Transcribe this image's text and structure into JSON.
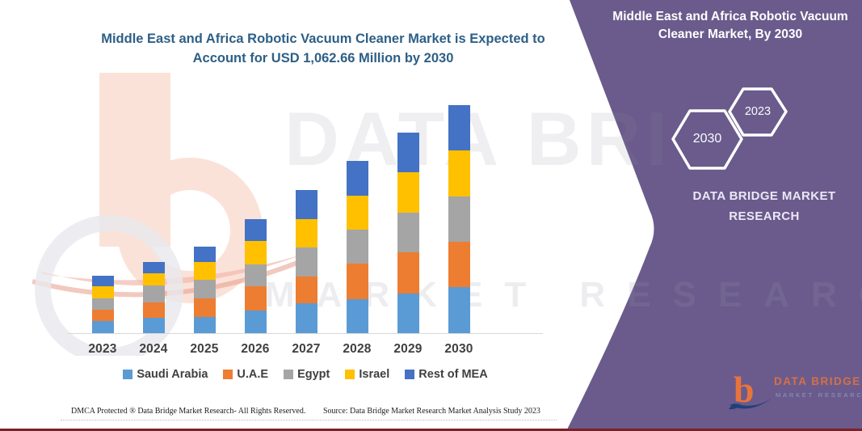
{
  "colors": {
    "panel_purple": "#6a5b8c",
    "bottom_line_maroon": "#7a2225",
    "title_blue": "#2d5f86",
    "axis_text": "#404040",
    "axis_line": "#d9d9d9",
    "logo_orange": "#e8743c",
    "logo_navy": "#223f7a"
  },
  "chart_data": {
    "type": "bar",
    "stacked": true,
    "title": "Middle East and Africa Robotic Vacuum Cleaner Market is Expected to Account for USD 1,062.66 Million by 2030",
    "unit": "USD Million",
    "categories": [
      "2023",
      "2024",
      "2025",
      "2026",
      "2027",
      "2028",
      "2029",
      "2030"
    ],
    "series": [
      {
        "name": "Saudi Arabia",
        "color": "#5B9BD5",
        "values": [
          57,
          73,
          77,
          104,
          139,
          157,
          185,
          215
        ]
      },
      {
        "name": "U.A.E",
        "color": "#ED7D31",
        "values": [
          54,
          72,
          84,
          113,
          126,
          167,
          193,
          212
        ]
      },
      {
        "name": "Egypt",
        "color": "#A5A5A5",
        "values": [
          50,
          79,
          88,
          103,
          134,
          160,
          184,
          211
        ]
      },
      {
        "name": "Israel",
        "color": "#FFC000",
        "values": [
          57,
          53,
          82,
          110,
          134,
          158,
          187,
          214
        ]
      },
      {
        "name": "Rest of MEA",
        "color": "#4472C4",
        "values": [
          50,
          54,
          72,
          103,
          133,
          160,
          186,
          211
        ]
      }
    ],
    "ylim": [
      0,
      1100
    ],
    "grid": false,
    "legend_position": "bottom",
    "value_labels": false
  },
  "side_panel": {
    "title": "Middle East and Africa Robotic Vacuum Cleaner Market, By 2030",
    "hexagon_large": "2030",
    "hexagon_small": "2023",
    "brand": "DATA BRIDGE MARKET RESEARCH",
    "logo_text": "DATA BRIDGE",
    "logo_subtext": "MARKET RESEARCH"
  },
  "footer": {
    "left": "DMCA Protected ® Data Bridge Market Research-  All Rights Reserved.",
    "source": "Source: Data Bridge Market Research  Market Analysis Study 2023"
  },
  "watermark": {
    "line1": "DATA BRI",
    "line2": "MARKET RESEARCH"
  }
}
